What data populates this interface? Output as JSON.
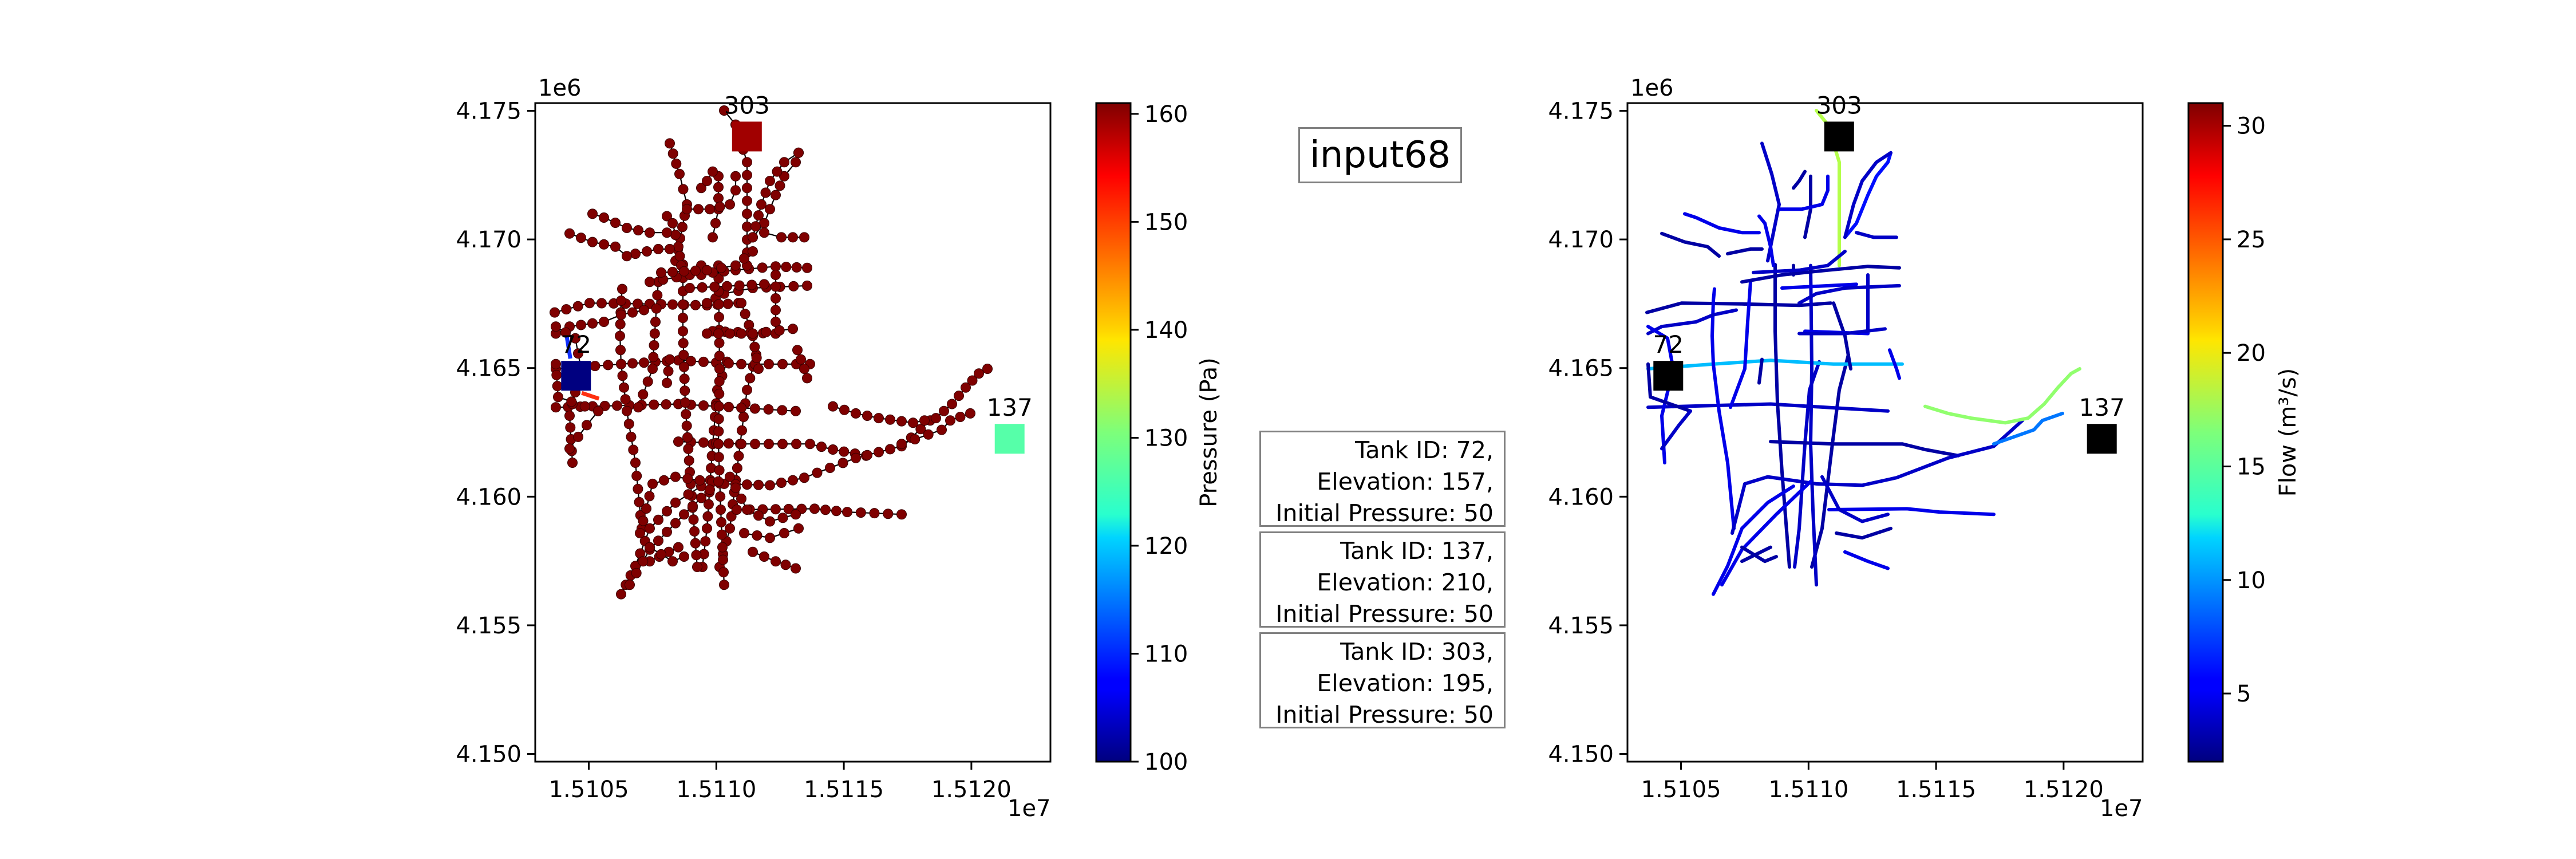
{
  "title": "input68",
  "tank_info": [
    {
      "line1": "Tank ID: 72,",
      "line2": "Elevation: 157,",
      "line3": "Initial Pressure: 50"
    },
    {
      "line1": "Tank ID: 137,",
      "line2": "Elevation: 210,",
      "line3": "Initial Pressure: 50"
    },
    {
      "line1": "Tank ID: 303,",
      "line2": "Elevation: 195,",
      "line3": "Initial Pressure: 50"
    }
  ],
  "chart_data": [
    {
      "type": "scatter",
      "title": "",
      "xlabel": "",
      "ylabel": "",
      "x_offset_label": "1e7",
      "y_offset_label": "1e6",
      "xlim": [
        1.51029,
        1.51231
      ],
      "ylim": [
        4.1497,
        4.1753
      ],
      "x_ticks": [
        1.5105,
        1.511,
        1.5115,
        1.512
      ],
      "x_tick_labels": [
        "1.5105",
        "1.5110",
        "1.5115",
        "1.5120"
      ],
      "y_ticks": [
        4.15,
        4.155,
        4.16,
        4.165,
        4.17,
        4.175
      ],
      "y_tick_labels": [
        "4.150",
        "4.155",
        "4.160",
        "4.165",
        "4.170",
        "4.175"
      ],
      "colorbar": {
        "label": "Pressure (Pa)",
        "min": 100,
        "max": 161,
        "ticks": [
          100,
          110,
          120,
          130,
          140,
          150,
          160
        ],
        "colormap": "jet"
      },
      "node_color": "#7f0000",
      "tanks": [
        {
          "id": "72",
          "x": 1.51045,
          "y": 4.1647,
          "value": 100
        },
        {
          "id": "137",
          "x": 1.51215,
          "y": 4.16225,
          "value": 128
        },
        {
          "id": "303",
          "x": 1.51112,
          "y": 4.174,
          "value": 159
        }
      ]
    },
    {
      "type": "line",
      "title": "",
      "xlabel": "",
      "ylabel": "",
      "x_offset_label": "1e7",
      "y_offset_label": "1e6",
      "xlim": [
        1.51029,
        1.51231
      ],
      "ylim": [
        4.1497,
        4.1753
      ],
      "x_ticks": [
        1.5105,
        1.511,
        1.5115,
        1.512
      ],
      "x_tick_labels": [
        "1.5105",
        "1.5110",
        "1.5115",
        "1.5120"
      ],
      "y_ticks": [
        4.15,
        4.155,
        4.16,
        4.165,
        4.17,
        4.175
      ],
      "y_tick_labels": [
        "4.150",
        "4.155",
        "4.160",
        "4.165",
        "4.170",
        "4.175"
      ],
      "colorbar": {
        "label": "Flow (m³/s)",
        "min": 2,
        "max": 31,
        "ticks": [
          5,
          10,
          15,
          20,
          25,
          30
        ],
        "colormap": "jet"
      },
      "tank_color": "#000000",
      "tanks": [
        {
          "id": "72",
          "x": 1.51045,
          "y": 4.1647
        },
        {
          "id": "137",
          "x": 1.51215,
          "y": 4.16225
        },
        {
          "id": "303",
          "x": 1.51112,
          "y": 4.174
        }
      ]
    }
  ]
}
